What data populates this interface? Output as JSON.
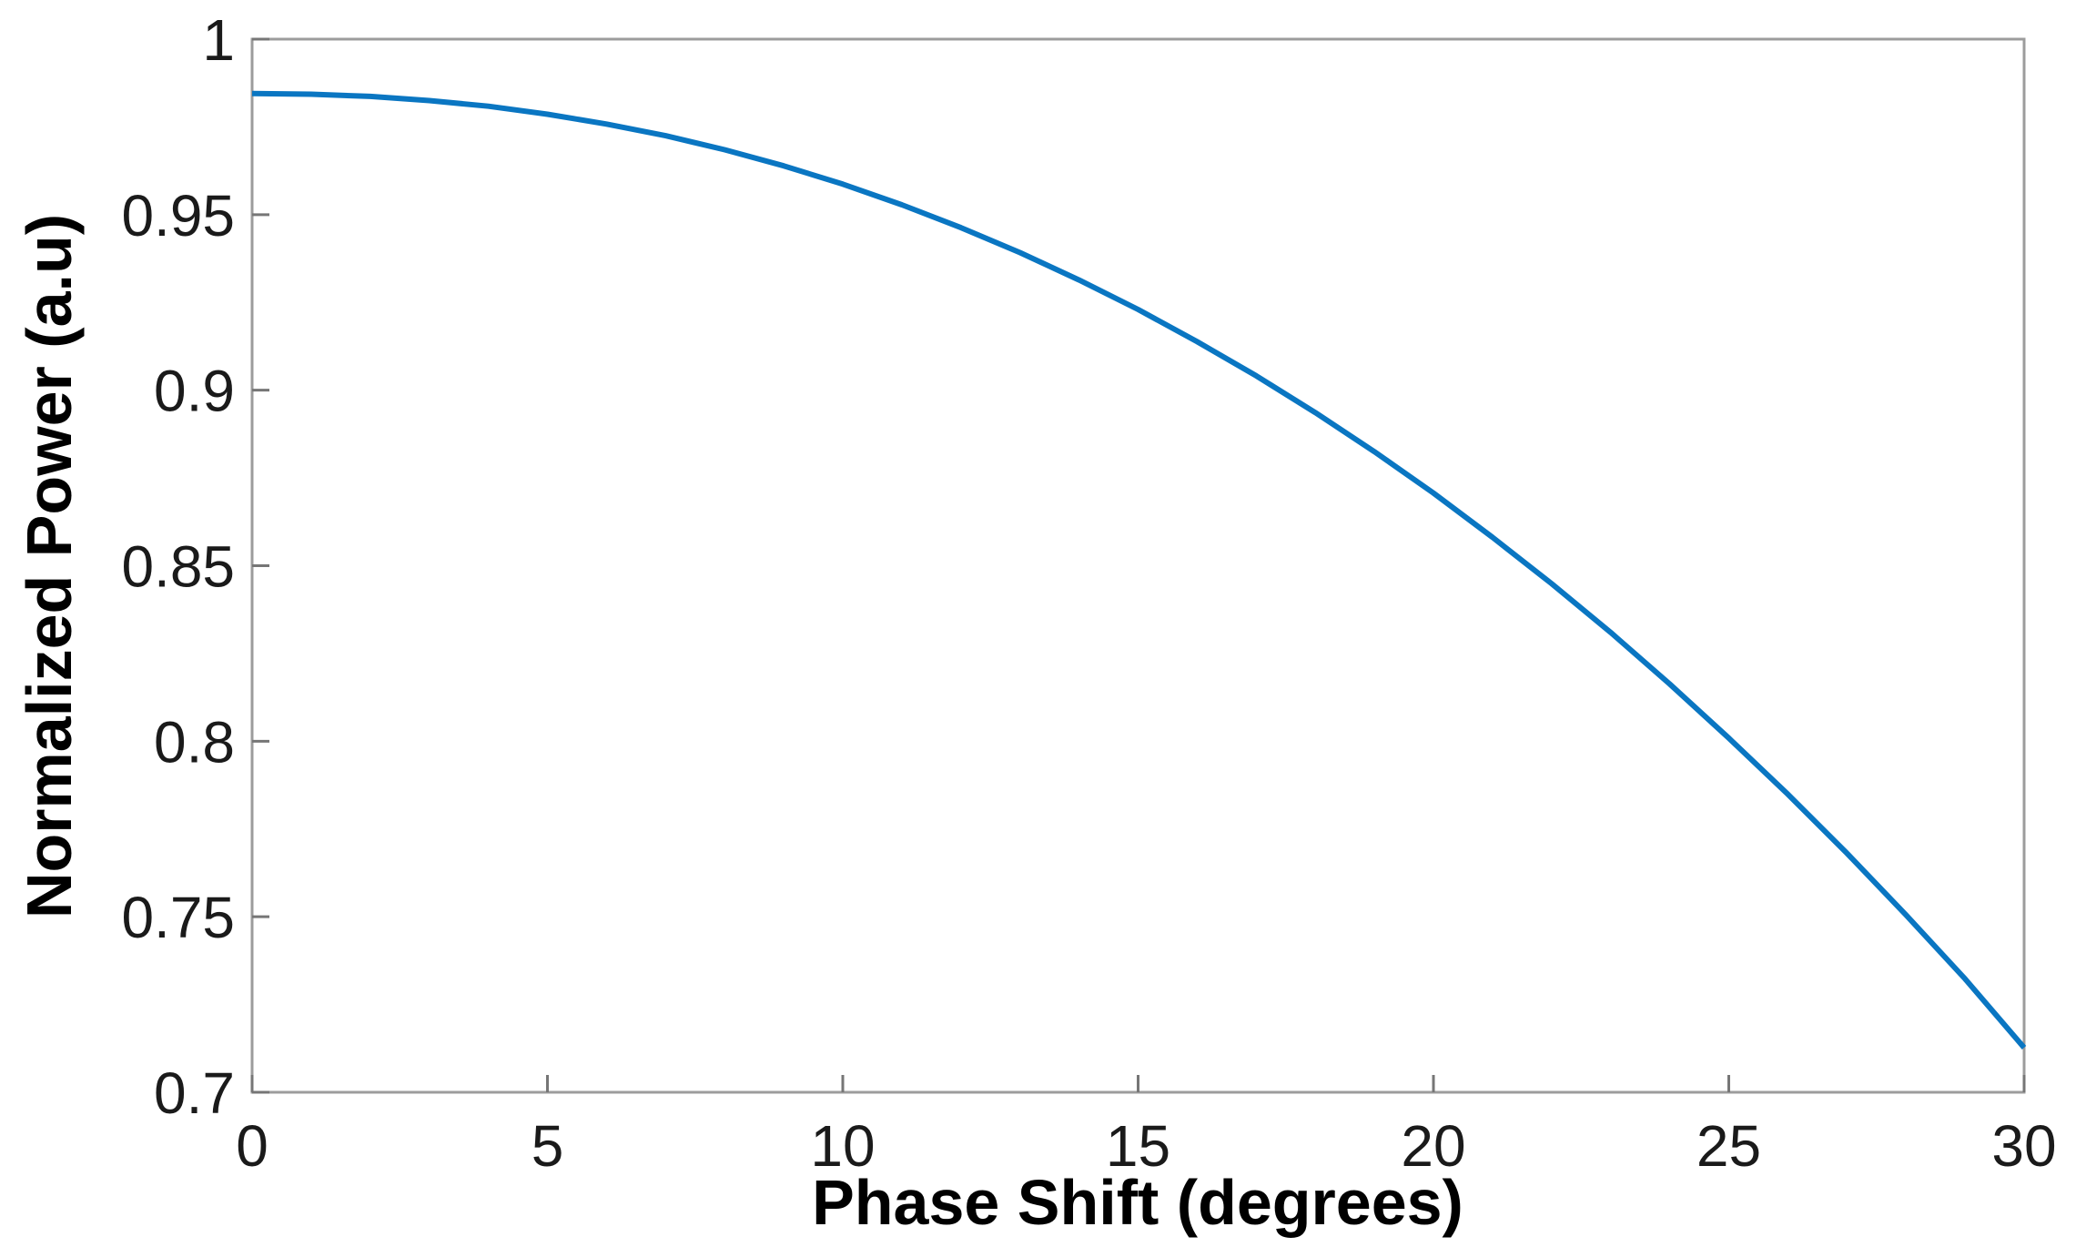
{
  "figure": {
    "background": "#ffffff"
  },
  "styles": {
    "spine_color": "#9c9c9c",
    "tick_color": "#767676",
    "tick_label_color": "#1a1a1a",
    "axis_title_color": "#000000"
  },
  "chart_data": {
    "type": "line",
    "title": "",
    "xlabel": "Phase Shift (degrees)",
    "ylabel": "Normalized Power (a.u)",
    "xlim": [
      0,
      30
    ],
    "ylim": [
      0.7,
      1.0
    ],
    "grid": false,
    "legend_position": "none",
    "x_ticks": [
      0,
      5,
      10,
      15,
      20,
      25,
      30
    ],
    "x_tick_labels": [
      "0",
      "5",
      "10",
      "15",
      "20",
      "25",
      "30"
    ],
    "y_ticks": [
      1.0,
      0.95,
      0.9,
      0.85,
      0.8,
      0.75,
      0.7
    ],
    "y_tick_labels": [
      "1",
      "0.95",
      "0.9",
      "0.85",
      "0.8",
      "0.75",
      "0.7"
    ],
    "series": [
      {
        "name": "normalized-power-vs-phase-shift",
        "color": "#0a76c2",
        "line_width": 6,
        "x": [
          0,
          1,
          2,
          3,
          4,
          5,
          6,
          7,
          8,
          9,
          10,
          11,
          12,
          13,
          14,
          15,
          16,
          17,
          18,
          19,
          20,
          21,
          22,
          23,
          24,
          25,
          26,
          27,
          28,
          29,
          30
        ],
        "y": [
          0.9845,
          0.9843,
          0.9837,
          0.9825,
          0.9809,
          0.9786,
          0.9758,
          0.9725,
          0.9685,
          0.9639,
          0.9587,
          0.9528,
          0.9463,
          0.9392,
          0.9314,
          0.923,
          0.9138,
          0.9041,
          0.8936,
          0.8825,
          0.8707,
          0.8581,
          0.8449,
          0.831,
          0.8163,
          0.8009,
          0.7849,
          0.7681,
          0.7505,
          0.7323,
          0.7127
        ]
      }
    ]
  }
}
